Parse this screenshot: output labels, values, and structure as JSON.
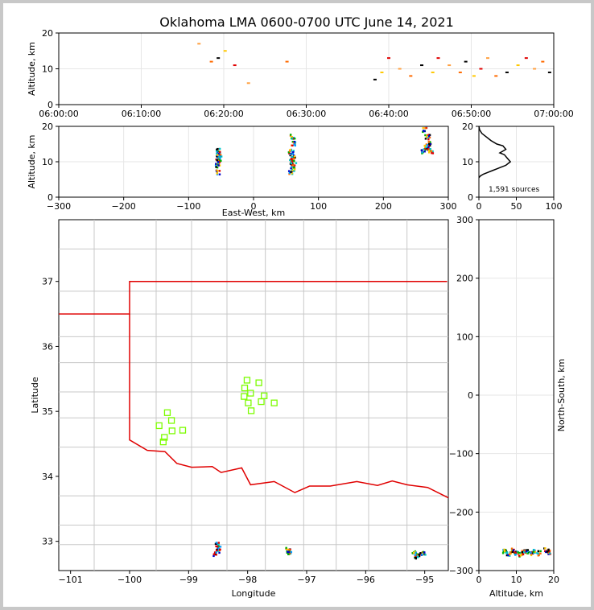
{
  "title": "Oklahoma LMA 0600-0700 UTC June 14, 2021",
  "colors": {
    "state_border": "#e00000",
    "county_lines": "#c8c8c8",
    "stations": "#7cfc00",
    "histogram": "#000000"
  },
  "chart_data": [
    {
      "id": "time_height",
      "type": "scatter",
      "ylabel": "Altitude, km",
      "xlabel": "",
      "x_tick_labels": [
        "06:00:00",
        "06:10:00",
        "06:20:00",
        "06:30:00",
        "06:40:00",
        "06:50:00",
        "07:00:00"
      ],
      "y_ticks": [
        0,
        10,
        20
      ],
      "ylim": [
        0,
        20
      ],
      "xlim": [
        "06:00:00",
        "07:00:00"
      ],
      "grid": true,
      "series": [
        {
          "x": [
            "06:17:00",
            "06:18:30",
            "06:19:20",
            "06:20:10",
            "06:21:20",
            "06:23:00",
            "06:27:40",
            "06:38:20",
            "06:39:10",
            "06:40:00",
            "06:41:20",
            "06:42:40",
            "06:44:00",
            "06:45:20",
            "06:46:00",
            "06:47:20",
            "06:48:40",
            "06:49:20",
            "06:50:20",
            "06:51:10",
            "06:52:00",
            "06:53:00",
            "06:54:20",
            "06:55:40",
            "06:56:40",
            "06:57:40",
            "06:58:40",
            "06:59:30"
          ],
          "y": [
            17,
            12,
            13,
            15,
            11,
            6,
            12,
            7,
            9,
            13,
            10,
            8,
            11,
            9,
            13,
            11,
            9,
            12,
            8,
            10,
            13,
            8,
            9,
            11,
            13,
            10,
            12,
            9
          ]
        }
      ]
    },
    {
      "id": "ew_height",
      "type": "scatter",
      "xlabel": "East-West, km",
      "ylabel": "Altitude, km",
      "x_ticks": [
        -300,
        -200,
        -100,
        0,
        100,
        200,
        300
      ],
      "y_ticks": [
        0,
        10,
        20
      ],
      "xlim": [
        -300,
        300
      ],
      "ylim": [
        0,
        20
      ],
      "grid": true,
      "series": [
        {
          "name": "",
          "x": [
            -55,
            -55,
            -54,
            -55,
            -53,
            -55
          ],
          "y": [
            7,
            9,
            10,
            11,
            12,
            13
          ]
        },
        {
          "name": "",
          "x": [
            58,
            60,
            62,
            59,
            61,
            60,
            58,
            62,
            60
          ],
          "y": [
            7,
            8,
            9,
            10,
            11,
            12,
            13,
            15,
            17
          ]
        },
        {
          "name": "",
          "x": [
            262,
            266,
            270,
            274,
            268,
            264
          ],
          "y": [
            13,
            14,
            15,
            13,
            17,
            19
          ]
        }
      ]
    },
    {
      "id": "altitude_histogram",
      "type": "line",
      "annotation": "1,591 sources",
      "x_ticks": [
        0,
        50,
        100
      ],
      "y_ticks": [
        0,
        10,
        20
      ],
      "xlim": [
        0,
        100
      ],
      "ylim": [
        0,
        20
      ],
      "grid": true,
      "series": [
        {
          "x": [
            0,
            2,
            6,
            12,
            18,
            24,
            30,
            36,
            42,
            38,
            34,
            28,
            36,
            32,
            24,
            16,
            10,
            4,
            1,
            0
          ],
          "y": [
            5.5,
            6.0,
            6.5,
            7.0,
            7.5,
            8.0,
            8.5,
            9.0,
            10.0,
            11.0,
            12.0,
            12.5,
            13.5,
            14.5,
            15.0,
            16.0,
            17.0,
            18.0,
            19.0,
            20.0
          ]
        }
      ]
    },
    {
      "id": "plan_view",
      "type": "scatter",
      "xlabel": "Longitude",
      "ylabel": "Latitude",
      "x_ticks": [
        -101,
        -100,
        -99,
        -98,
        -97,
        -96,
        -95
      ],
      "y_ticks": [
        33,
        34,
        35,
        36,
        37
      ],
      "xlim": [
        -101.2,
        -94.6
      ],
      "ylim": [
        32.55,
        37.95
      ],
      "grid": true,
      "series": [
        {
          "name": "",
          "x": [
            -98.52,
            -98.48,
            -98.5,
            -98.55
          ],
          "y": [
            32.95,
            32.9,
            32.85,
            32.8
          ]
        },
        {
          "name": "",
          "x": [
            -97.32,
            -97.28,
            -97.3
          ],
          "y": [
            32.87,
            32.83,
            32.85
          ]
        },
        {
          "name": "",
          "x": [
            -95.18,
            -95.1,
            -95.02,
            -95.14
          ],
          "y": [
            32.83,
            32.79,
            32.82,
            32.76
          ]
        }
      ],
      "stations": {
        "lon": [
          -98.01,
          -97.81,
          -98.05,
          -97.95,
          -98.06,
          -97.72,
          -97.55,
          -97.99,
          -97.94,
          -97.77,
          -99.36,
          -99.29,
          -99.28,
          -99.5,
          -99.41,
          -99.43,
          -99.1
        ],
        "lat": [
          35.48,
          35.44,
          35.36,
          35.28,
          35.23,
          35.24,
          35.13,
          35.13,
          35.01,
          35.15,
          34.98,
          34.86,
          34.7,
          34.78,
          34.6,
          34.53,
          34.71
        ]
      }
    },
    {
      "id": "ns_height",
      "type": "scatter",
      "xlabel": "Altitude, km",
      "ylabel": "North-South, km",
      "x_ticks": [
        0,
        10,
        20
      ],
      "y_ticks": [
        -300,
        -200,
        -100,
        0,
        100,
        200,
        300
      ],
      "xlim": [
        0,
        20
      ],
      "ylim": [
        -300,
        300
      ],
      "grid": true,
      "series": [
        {
          "name": "",
          "x": [
            7,
            8,
            9,
            10,
            11,
            12,
            13,
            14,
            15,
            16,
            18,
            19
          ],
          "y": [
            -268,
            -271,
            -266,
            -270,
            -273,
            -269,
            -267,
            -271,
            -268,
            -270,
            -266,
            -268
          ]
        }
      ]
    }
  ]
}
